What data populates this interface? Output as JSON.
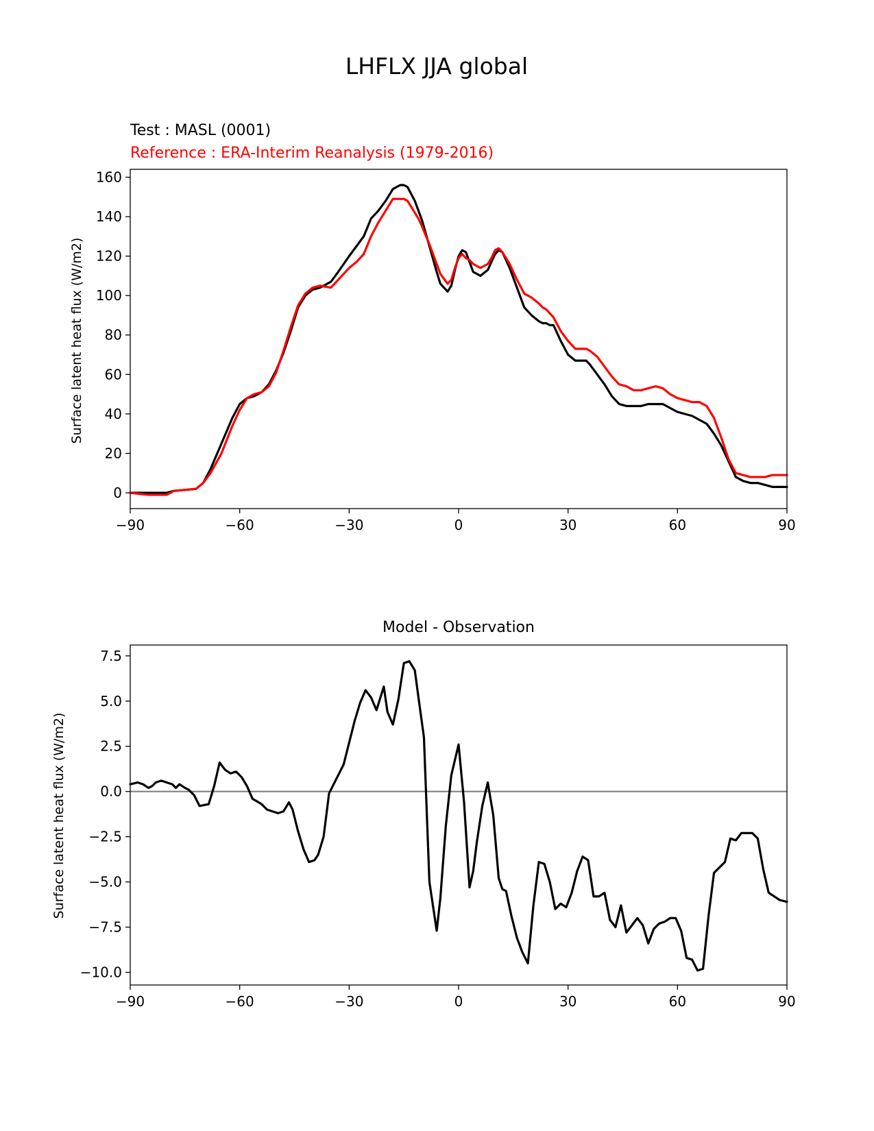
{
  "figure": {
    "title": "LHFLX JJA global"
  },
  "chart_data": [
    {
      "type": "line",
      "test_label": "Test : MASL (0001)",
      "reference_label": "Reference : ERA-Interim Reanalysis (1979-2016)",
      "xlabel": "",
      "ylabel": "Surface latent heat flux (W/m2)",
      "xlim": [
        -90,
        90
      ],
      "ylim": [
        -8,
        164
      ],
      "xticks": [
        -90,
        -60,
        -30,
        0,
        30,
        60,
        90
      ],
      "xtick_labels": [
        "−90",
        "−60",
        "−30",
        "0",
        "30",
        "60",
        "90"
      ],
      "yticks": [
        0,
        20,
        40,
        60,
        80,
        100,
        120,
        140,
        160
      ],
      "ytick_labels": [
        "0",
        "20",
        "40",
        "60",
        "80",
        "100",
        "120",
        "140",
        "160"
      ],
      "grid": false,
      "colors": {
        "test": "#000000",
        "reference": "#ff0000"
      },
      "series": [
        {
          "key": "test",
          "x": [
            -90,
            -85,
            -80,
            -78,
            -75,
            -72,
            -70,
            -68,
            -65,
            -62,
            -60,
            -58,
            -56,
            -54,
            -52,
            -50,
            -48,
            -46,
            -44,
            -42,
            -40,
            -38,
            -35,
            -33,
            -30,
            -28,
            -26,
            -24,
            -22,
            -20,
            -18,
            -16,
            -15,
            -14,
            -12,
            -11,
            -10,
            -8,
            -6,
            -5,
            -3,
            -2,
            -1,
            0,
            1,
            2,
            3,
            4,
            5,
            6,
            8,
            9,
            10,
            11,
            12,
            13,
            14,
            16,
            18,
            20,
            22,
            23,
            24,
            25,
            26,
            28,
            30,
            32,
            34,
            35,
            36,
            38,
            40,
            42,
            44,
            46,
            48,
            50,
            52,
            54,
            56,
            58,
            60,
            62,
            64,
            66,
            68,
            70,
            72,
            74,
            76,
            78,
            80,
            82,
            84,
            86,
            88,
            90
          ],
          "y": [
            0,
            0,
            0,
            1,
            1.5,
            2,
            5,
            12,
            25,
            38,
            45,
            48,
            49,
            51,
            55,
            62,
            71,
            82,
            94,
            100,
            103,
            104,
            107,
            112,
            120,
            125,
            130,
            139,
            143,
            148,
            154,
            156,
            156,
            155,
            148,
            143,
            138,
            125,
            112,
            106,
            102,
            105,
            113,
            120,
            123,
            122,
            117,
            112,
            111,
            110,
            113,
            117,
            121,
            123,
            122,
            118,
            114,
            104,
            94,
            90,
            87,
            86,
            86,
            85,
            85,
            77,
            70,
            67,
            67,
            67,
            65,
            60,
            55,
            49,
            45,
            44,
            44,
            44,
            45,
            45,
            45,
            43,
            41,
            40,
            39,
            37,
            35,
            30,
            24,
            16,
            8,
            6,
            5,
            5,
            4,
            3,
            3,
            3
          ]
        },
        {
          "key": "reference",
          "x": [
            -90,
            -85,
            -80,
            -78,
            -75,
            -72,
            -70,
            -68,
            -65,
            -62,
            -60,
            -58,
            -56,
            -54,
            -52,
            -50,
            -48,
            -46,
            -44,
            -42,
            -40,
            -38,
            -35,
            -33,
            -30,
            -28,
            -26,
            -24,
            -22,
            -20,
            -18,
            -16,
            -15,
            -14,
            -12,
            -11,
            -10,
            -8,
            -6,
            -5,
            -3,
            -2,
            -1,
            0,
            1,
            2,
            3,
            4,
            5,
            6,
            8,
            9,
            10,
            11,
            12,
            13,
            14,
            16,
            18,
            20,
            22,
            23,
            24,
            25,
            26,
            28,
            30,
            32,
            34,
            35,
            36,
            38,
            40,
            42,
            44,
            46,
            48,
            50,
            52,
            54,
            56,
            58,
            60,
            62,
            64,
            66,
            68,
            70,
            72,
            74,
            76,
            78,
            80,
            82,
            84,
            86,
            88,
            90
          ],
          "y": [
            0,
            -1,
            -1,
            1,
            1.5,
            2,
            5,
            10,
            20,
            34,
            42,
            48,
            50,
            51,
            54,
            61,
            72,
            84,
            95,
            101,
            104,
            105,
            104,
            108,
            114,
            117,
            121,
            130,
            137,
            143,
            149,
            149,
            149,
            148,
            142,
            139,
            135,
            126,
            116,
            111,
            106,
            108,
            114,
            119,
            121,
            119,
            118,
            116,
            115,
            114,
            116,
            119,
            123,
            124,
            122,
            119,
            116,
            108,
            101,
            99,
            96,
            94,
            93,
            91,
            89,
            82,
            77,
            73,
            73,
            73,
            72,
            69,
            64,
            59,
            55,
            54,
            52,
            52,
            53,
            54,
            53,
            50,
            48,
            47,
            46,
            46,
            44,
            38,
            28,
            17,
            10,
            9,
            8,
            8,
            8,
            9,
            9,
            9
          ]
        }
      ]
    },
    {
      "type": "line",
      "title": "Model - Observation",
      "xlabel": "",
      "ylabel": "Surface latent heat flux (W/m2)",
      "xlim": [
        -90,
        90
      ],
      "ylim": [
        -10.7,
        8.1
      ],
      "xticks": [
        -90,
        -60,
        -30,
        0,
        30,
        60,
        90
      ],
      "xtick_labels": [
        "−90",
        "−60",
        "−30",
        "0",
        "30",
        "60",
        "90"
      ],
      "yticks": [
        7.5,
        5.0,
        2.5,
        0.0,
        -2.5,
        -5.0,
        -7.5,
        -10.0
      ],
      "ytick_labels": [
        "7.5",
        "5.0",
        "2.5",
        "0.0",
        "−2.5",
        "−5.0",
        "−7.5",
        "−10.0"
      ],
      "grid": false,
      "zero_line": {
        "y": 0,
        "color": "#808080"
      },
      "colors": {
        "diff": "#000000"
      },
      "series": [
        {
          "key": "diff",
          "x": [
            -90,
            -88,
            -86.5,
            -85,
            -84,
            -83,
            -81.5,
            -80,
            -78.5,
            -77.5,
            -76.5,
            -75,
            -74,
            -72.5,
            -71,
            -68.5,
            -67,
            -65.5,
            -64,
            -62.5,
            -61,
            -59.5,
            -58,
            -56.5,
            -54,
            -52.5,
            -51,
            -49.5,
            -48,
            -46.5,
            -45.5,
            -44,
            -42.5,
            -41,
            -39.5,
            -38.5,
            -37,
            -35.5,
            -34.5,
            -33,
            -31.5,
            -30,
            -28.5,
            -27,
            -25.5,
            -24,
            -22.5,
            -20.5,
            -19.5,
            -18,
            -16.5,
            -15,
            -13.5,
            -12,
            -11,
            -9.5,
            -8,
            -6,
            -5,
            -3.5,
            -2,
            0,
            1.5,
            3,
            4,
            5,
            6.5,
            8,
            9.5,
            11,
            12,
            13,
            14.5,
            16,
            17.5,
            19,
            20.5,
            22,
            23.5,
            25,
            26.5,
            28,
            29.5,
            31,
            32.5,
            34,
            35.5,
            37,
            38.5,
            40,
            41.5,
            43,
            44.5,
            46,
            47.5,
            49,
            50.5,
            52,
            53.5,
            55,
            56.5,
            58,
            59.5,
            61,
            62.5,
            64,
            65.5,
            67,
            68.5,
            70,
            71.5,
            73,
            74.5,
            76,
            77.5,
            79,
            80.5,
            82,
            83.5,
            85,
            86.5,
            88,
            90
          ],
          "y": [
            0.4,
            0.5,
            0.4,
            0.2,
            0.3,
            0.5,
            0.6,
            0.5,
            0.4,
            0.2,
            0.4,
            0.2,
            0.1,
            -0.2,
            -0.8,
            -0.7,
            0.3,
            1.6,
            1.2,
            1.0,
            1.1,
            0.8,
            0.3,
            -0.4,
            -0.7,
            -1.0,
            -1.1,
            -1.2,
            -1.1,
            -0.6,
            -1.0,
            -2.2,
            -3.2,
            -3.9,
            -3.8,
            -3.5,
            -2.5,
            -0.1,
            0.3,
            0.9,
            1.5,
            2.7,
            3.9,
            4.9,
            5.6,
            5.2,
            4.5,
            5.8,
            4.4,
            3.7,
            5.1,
            7.1,
            7.2,
            6.7,
            5.2,
            3.0,
            -5.0,
            -7.7,
            -5.9,
            -1.9,
            0.9,
            2.6,
            -0.6,
            -5.3,
            -4.4,
            -2.8,
            -0.8,
            0.5,
            -1.3,
            -4.8,
            -5.4,
            -5.5,
            -6.9,
            -8.1,
            -8.9,
            -9.5,
            -6.3,
            -3.9,
            -4.0,
            -5.0,
            -6.5,
            -6.2,
            -6.4,
            -5.6,
            -4.4,
            -3.6,
            -3.8,
            -5.8,
            -5.8,
            -5.6,
            -7.1,
            -7.5,
            -6.3,
            -7.8,
            -7.4,
            -7.0,
            -7.4,
            -8.4,
            -7.6,
            -7.3,
            -7.2,
            -7.0,
            -7.0,
            -7.7,
            -9.2,
            -9.3,
            -9.9,
            -9.8,
            -6.9,
            -4.5,
            -4.2,
            -3.9,
            -2.6,
            -2.7,
            -2.3,
            -2.3,
            -2.3,
            -2.6,
            -4.3,
            -5.6,
            -5.8,
            -6.0,
            -6.1
          ]
        }
      ]
    }
  ]
}
